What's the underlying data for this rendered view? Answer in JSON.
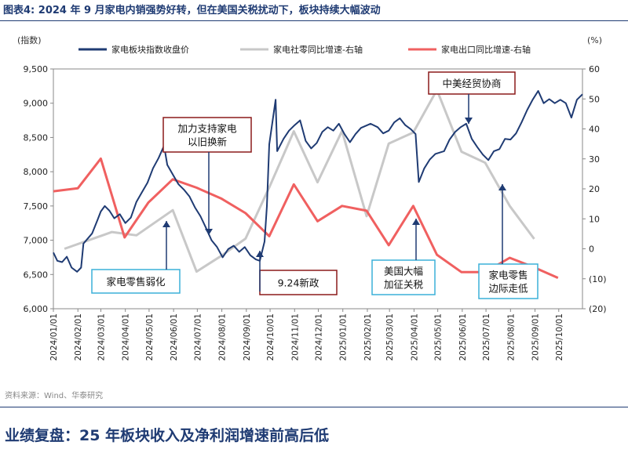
{
  "figure_title": "图表4:  2024 年 9 月家电内销强势好转，但在美国关税扰动下，板块持续大幅波动",
  "source_note": "资料来源：Wind、华泰研究",
  "section_heading": "业绩复盘：25 年板块收入及净利润增速前高后低",
  "colors": {
    "title": "#1f3b73",
    "index_line": "#1f3b73",
    "retail_line": "#c8c8c8",
    "export_line": "#f06060",
    "callout_dark_red": "#8b1a1a",
    "callout_cyan": "#3bb0d8",
    "arrow": "#1f3b73"
  },
  "chart_data": {
    "type": "line",
    "left_axis_unit": "(指数)",
    "right_axis_unit": "(%)",
    "left_axis": {
      "min": 6000,
      "max": 9500,
      "ticks": [
        6000,
        6500,
        7000,
        7500,
        8000,
        8500,
        9000,
        9500
      ],
      "tick_labels": [
        "6,000",
        "6,500",
        "7,000",
        "7,500",
        "8,000",
        "8,500",
        "9,000",
        "9,500"
      ]
    },
    "right_axis": {
      "min": -20,
      "max": 60,
      "ticks": [
        -20,
        -10,
        0,
        10,
        20,
        30,
        40,
        50,
        60
      ],
      "tick_labels": [
        "(20)",
        "(10)",
        "0",
        "10",
        "20",
        "30",
        "40",
        "50",
        "60"
      ]
    },
    "x_tick_labels": [
      "2024/01/01",
      "2024/02/01",
      "2024/03/01",
      "2024/04/01",
      "2024/05/01",
      "2024/06/01",
      "2024/07/01",
      "2024/08/01",
      "2024/09/01",
      "2024/10/01",
      "2024/11/01",
      "2024/12/01",
      "2025/01/01",
      "2025/02/01",
      "2025/03/01",
      "2025/04/01",
      "2025/05/01",
      "2025/06/01",
      "2025/07/01",
      "2025/08/01",
      "2025/09/01",
      "2025/10/01"
    ],
    "x_range": [
      "2024/01/01",
      "2025/10/31"
    ],
    "grid": false,
    "legend_position": "top",
    "series": [
      {
        "name": "家电板块指数收盘价",
        "axis": "left",
        "points": [
          [
            "2024/01/01",
            6820
          ],
          [
            "2024/01/06",
            6700
          ],
          [
            "2024/01/12",
            6680
          ],
          [
            "2024/01/18",
            6760
          ],
          [
            "2024/01/24",
            6600
          ],
          [
            "2024/01/31",
            6540
          ],
          [
            "2024/02/05",
            6600
          ],
          [
            "2024/02/08",
            6950
          ],
          [
            "2024/02/19",
            7100
          ],
          [
            "2024/02/26",
            7300
          ],
          [
            "2024/03/01",
            7420
          ],
          [
            "2024/03/06",
            7500
          ],
          [
            "2024/03/12",
            7430
          ],
          [
            "2024/03/18",
            7320
          ],
          [
            "2024/03/25",
            7380
          ],
          [
            "2024/04/01",
            7250
          ],
          [
            "2024/04/08",
            7330
          ],
          [
            "2024/04/15",
            7560
          ],
          [
            "2024/04/22",
            7700
          ],
          [
            "2024/04/29",
            7840
          ],
          [
            "2024/05/06",
            8050
          ],
          [
            "2024/05/13",
            8200
          ],
          [
            "2024/05/20",
            8380
          ],
          [
            "2024/05/24",
            8100
          ],
          [
            "2024/05/31",
            7960
          ],
          [
            "2024/06/07",
            7820
          ],
          [
            "2024/06/14",
            7740
          ],
          [
            "2024/06/21",
            7640
          ],
          [
            "2024/06/28",
            7480
          ],
          [
            "2024/07/05",
            7350
          ],
          [
            "2024/07/12",
            7180
          ],
          [
            "2024/07/19",
            7000
          ],
          [
            "2024/07/26",
            6900
          ],
          [
            "2024/08/02",
            6750
          ],
          [
            "2024/08/09",
            6870
          ],
          [
            "2024/08/16",
            6920
          ],
          [
            "2024/08/23",
            6830
          ],
          [
            "2024/08/30",
            6900
          ],
          [
            "2024/09/06",
            6780
          ],
          [
            "2024/09/13",
            6720
          ],
          [
            "2024/09/18",
            6700
          ],
          [
            "2024/09/24",
            6980
          ],
          [
            "2024/09/27",
            7500
          ],
          [
            "2024/09/30",
            8400
          ],
          [
            "2024/10/08",
            9050
          ],
          [
            "2024/10/10",
            8300
          ],
          [
            "2024/10/18",
            8480
          ],
          [
            "2024/10/25",
            8600
          ],
          [
            "2024/11/01",
            8680
          ],
          [
            "2024/11/08",
            8750
          ],
          [
            "2024/11/15",
            8450
          ],
          [
            "2024/11/22",
            8340
          ],
          [
            "2024/11/29",
            8420
          ],
          [
            "2024/12/06",
            8580
          ],
          [
            "2024/12/13",
            8650
          ],
          [
            "2024/12/20",
            8600
          ],
          [
            "2024/12/27",
            8700
          ],
          [
            "2025/01/03",
            8550
          ],
          [
            "2025/01/10",
            8430
          ],
          [
            "2025/01/17",
            8550
          ],
          [
            "2025/01/24",
            8640
          ],
          [
            "2025/02/05",
            8700
          ],
          [
            "2025/02/14",
            8650
          ],
          [
            "2025/02/21",
            8560
          ],
          [
            "2025/02/28",
            8600
          ],
          [
            "2025/03/07",
            8720
          ],
          [
            "2025/03/14",
            8780
          ],
          [
            "2025/03/21",
            8680
          ],
          [
            "2025/03/28",
            8620
          ],
          [
            "2025/04/03",
            8550
          ],
          [
            "2025/04/07",
            7850
          ],
          [
            "2025/04/14",
            8050
          ],
          [
            "2025/04/21",
            8180
          ],
          [
            "2025/04/28",
            8260
          ],
          [
            "2025/05/09",
            8300
          ],
          [
            "2025/05/16",
            8470
          ],
          [
            "2025/05/23",
            8580
          ],
          [
            "2025/05/30",
            8650
          ],
          [
            "2025/06/06",
            8700
          ],
          [
            "2025/06/13",
            8480
          ],
          [
            "2025/06/20",
            8360
          ],
          [
            "2025/06/27",
            8250
          ],
          [
            "2025/07/04",
            8170
          ],
          [
            "2025/07/11",
            8300
          ],
          [
            "2025/07/18",
            8330
          ],
          [
            "2025/07/25",
            8480
          ],
          [
            "2025/08/01",
            8470
          ],
          [
            "2025/08/08",
            8560
          ],
          [
            "2025/08/15",
            8720
          ],
          [
            "2025/08/22",
            8900
          ],
          [
            "2025/08/29",
            9050
          ],
          [
            "2025/09/05",
            9180
          ],
          [
            "2025/09/12",
            9000
          ],
          [
            "2025/09/19",
            9060
          ],
          [
            "2025/09/26",
            9000
          ],
          [
            "2025/10/03",
            9050
          ],
          [
            "2025/10/10",
            9000
          ],
          [
            "2025/10/17",
            8790
          ],
          [
            "2025/10/24",
            9050
          ],
          [
            "2025/10/31",
            9130
          ]
        ]
      },
      {
        "name": "家电社零同比增速-右轴",
        "axis": "right",
        "points": [
          [
            "2024/01/15",
            0
          ],
          [
            "2024/03/15",
            5.6
          ],
          [
            "2024/04/15",
            4.5
          ],
          [
            "2024/05/31",
            12.9
          ],
          [
            "2024/06/30",
            -7.6
          ],
          [
            "2024/07/31",
            -2.4
          ],
          [
            "2024/08/31",
            3.4
          ],
          [
            "2024/09/30",
            20.5
          ],
          [
            "2024/10/31",
            39.2
          ],
          [
            "2024/11/30",
            22.2
          ],
          [
            "2024/12/31",
            39.3
          ],
          [
            "2025/01/31",
            10.9
          ],
          [
            "2025/02/28",
            35.1
          ],
          [
            "2025/03/31",
            38.8
          ],
          [
            "2025/04/30",
            53.0
          ],
          [
            "2025/05/31",
            32.4
          ],
          [
            "2025/06/30",
            28.7
          ],
          [
            "2025/07/31",
            14.3
          ],
          [
            "2025/08/31",
            3.3
          ]
        ]
      },
      {
        "name": "家电出口同比增速-右轴",
        "axis": "right",
        "points": [
          [
            "2024/01/01",
            19.2
          ],
          [
            "2024/02/01",
            20.2
          ],
          [
            "2024/03/01",
            30.1
          ],
          [
            "2024/03/31",
            3.8
          ],
          [
            "2024/04/30",
            15.4
          ],
          [
            "2024/05/31",
            23.2
          ],
          [
            "2024/06/30",
            20.4
          ],
          [
            "2024/07/31",
            16.8
          ],
          [
            "2024/08/31",
            11.9
          ],
          [
            "2024/09/30",
            4.2
          ],
          [
            "2024/10/31",
            21.5
          ],
          [
            "2024/11/30",
            9.2
          ],
          [
            "2024/12/31",
            14.3
          ],
          [
            "2025/01/31",
            12.7
          ],
          [
            "2025/02/28",
            1.2
          ],
          [
            "2025/03/31",
            14.3
          ],
          [
            "2025/04/30",
            -2.0
          ],
          [
            "2025/05/31",
            -7.8
          ],
          [
            "2025/06/30",
            -7.8
          ],
          [
            "2025/07/31",
            -3.0
          ],
          [
            "2025/08/31",
            -6.2
          ],
          [
            "2025/09/30",
            -9.7
          ]
        ]
      }
    ],
    "annotations": [
      {
        "id": "trade-in",
        "lines": [
          "加力支持家电",
          "以旧换新"
        ],
        "style": "dark-red"
      },
      {
        "id": "retail-weak",
        "lines": [
          "家电零售弱化"
        ],
        "style": "cyan"
      },
      {
        "id": "policy-924",
        "lines": [
          "9.24新政"
        ],
        "style": "dark-red"
      },
      {
        "id": "us-tariff",
        "lines": [
          "美国大幅",
          "加征关税"
        ],
        "style": "cyan"
      },
      {
        "id": "china-us-talks",
        "lines": [
          "中美经贸协商"
        ],
        "style": "dark-red"
      },
      {
        "id": "retail-marginal",
        "lines": [
          "家电零售",
          "边际走低"
        ],
        "style": "cyan"
      }
    ]
  }
}
